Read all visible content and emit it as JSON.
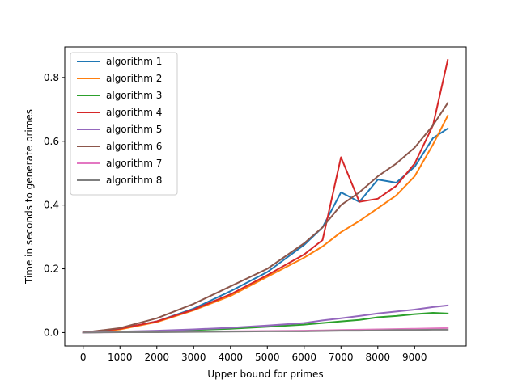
{
  "chart_data": {
    "type": "line",
    "title": "",
    "xlabel": "Upper bound for primes",
    "ylabel": "Time in seconds to generate primes",
    "xlim": [
      -500,
      10400
    ],
    "ylim": [
      -0.042,
      0.896
    ],
    "x_ticks": [
      0,
      1000,
      2000,
      3000,
      4000,
      5000,
      6000,
      7000,
      8000,
      9000
    ],
    "y_ticks": [
      0.0,
      0.2,
      0.4,
      0.6,
      0.8
    ],
    "grid": false,
    "legend_position": "upper-left",
    "x": [
      0,
      1000,
      2000,
      3000,
      4000,
      5000,
      6000,
      6500,
      7000,
      7500,
      8000,
      8500,
      9000,
      9500,
      9900
    ],
    "series": [
      {
        "name": "algorithm 1",
        "color": "#1f77b4",
        "values": [
          0.0,
          0.012,
          0.035,
          0.075,
          0.13,
          0.19,
          0.275,
          0.33,
          0.44,
          0.41,
          0.48,
          0.47,
          0.52,
          0.61,
          0.64
        ]
      },
      {
        "name": "algorithm 2",
        "color": "#ff7f0e",
        "values": [
          0.0,
          0.01,
          0.033,
          0.07,
          0.115,
          0.175,
          0.235,
          0.27,
          0.315,
          0.35,
          0.39,
          0.43,
          0.49,
          0.59,
          0.68
        ]
      },
      {
        "name": "algorithm 3",
        "color": "#2ca02c",
        "values": [
          0.0,
          0.002,
          0.004,
          0.008,
          0.012,
          0.018,
          0.025,
          0.03,
          0.035,
          0.04,
          0.048,
          0.052,
          0.058,
          0.062,
          0.06
        ]
      },
      {
        "name": "algorithm 4",
        "color": "#d62728",
        "values": [
          0.0,
          0.012,
          0.035,
          0.072,
          0.12,
          0.18,
          0.245,
          0.29,
          0.55,
          0.41,
          0.42,
          0.46,
          0.53,
          0.65,
          0.855
        ]
      },
      {
        "name": "algorithm 5",
        "color": "#9467bd",
        "values": [
          0.0,
          0.003,
          0.006,
          0.01,
          0.015,
          0.022,
          0.03,
          0.038,
          0.045,
          0.052,
          0.06,
          0.066,
          0.072,
          0.08,
          0.085
        ]
      },
      {
        "name": "algorithm 6",
        "color": "#8c564b",
        "values": [
          0.0,
          0.014,
          0.045,
          0.09,
          0.145,
          0.2,
          0.28,
          0.33,
          0.4,
          0.44,
          0.49,
          0.53,
          0.58,
          0.65,
          0.72
        ]
      },
      {
        "name": "algorithm 7",
        "color": "#e377c2",
        "values": [
          0.0,
          0.001,
          0.002,
          0.003,
          0.004,
          0.005,
          0.006,
          0.007,
          0.008,
          0.009,
          0.01,
          0.011,
          0.012,
          0.013,
          0.014
        ]
      },
      {
        "name": "algorithm 8",
        "color": "#7f7f7f",
        "values": [
          0.0,
          0.001,
          0.001,
          0.002,
          0.003,
          0.004,
          0.004,
          0.005,
          0.006,
          0.006,
          0.007,
          0.008,
          0.008,
          0.009,
          0.009
        ]
      }
    ]
  }
}
